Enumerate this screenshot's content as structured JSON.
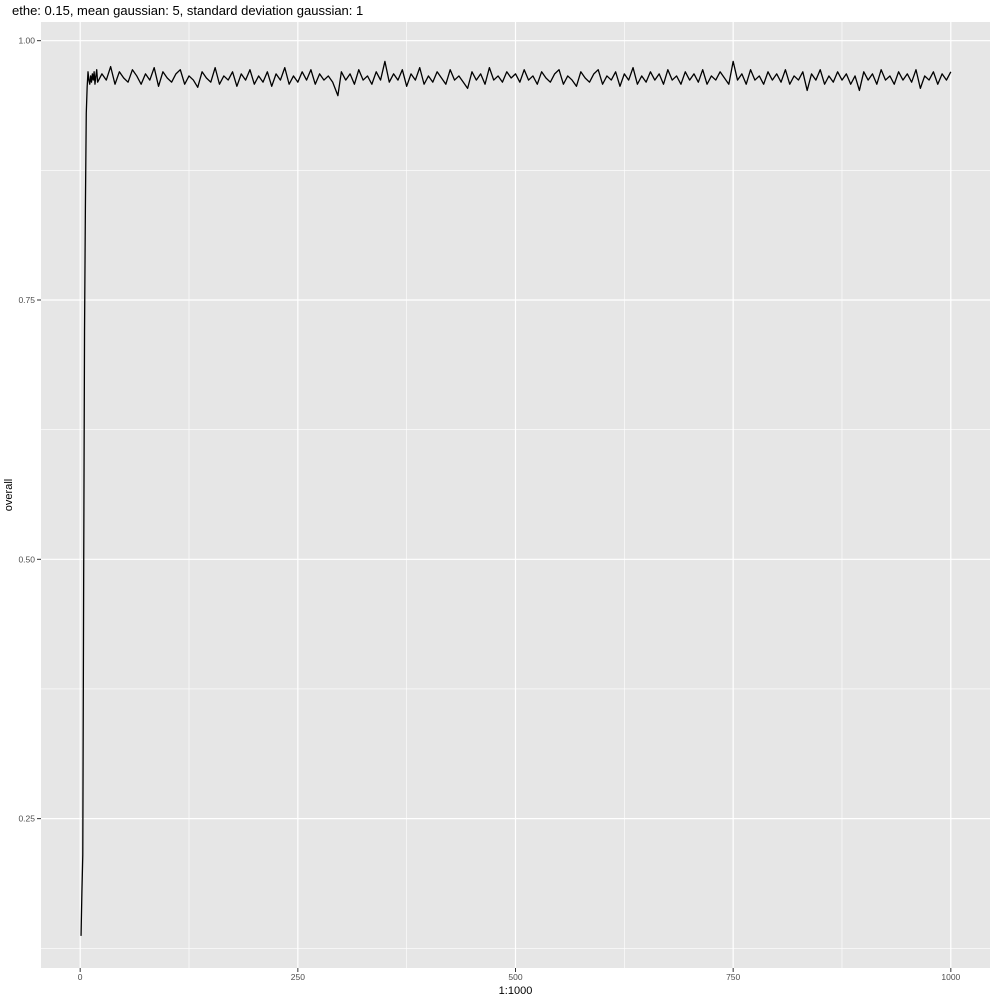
{
  "chart_data": {
    "type": "line",
    "title": "ethe: 0.15, mean gaussian: 5, standard deviation gaussian: 1",
    "xlabel": "1:1000",
    "ylabel": "overall",
    "xlim": [
      -45,
      1045
    ],
    "ylim": [
      0.106,
      1.018
    ],
    "x_ticks": [
      0,
      250,
      500,
      750,
      1000
    ],
    "x_tick_labels": [
      "0",
      "250",
      "500",
      "750",
      "1000"
    ],
    "y_ticks": [
      0.25,
      0.5,
      0.75,
      1.0
    ],
    "y_tick_labels": [
      "0.25",
      "0.50",
      "0.75",
      "1.00"
    ],
    "grid": true,
    "background": "#e6e6e6",
    "grid_color": "#ffffff",
    "line_color": "#000000",
    "series": [
      {
        "x": [
          1,
          2,
          3,
          4,
          5,
          6,
          7,
          8,
          9,
          10,
          11,
          12,
          13,
          14,
          15,
          16,
          17,
          18,
          19,
          20,
          25,
          30,
          35,
          40,
          45,
          50,
          55,
          60,
          65,
          70,
          75,
          80,
          85,
          90,
          95,
          100,
          105,
          110,
          115,
          120,
          125,
          130,
          135,
          140,
          145,
          150,
          155,
          160,
          165,
          170,
          175,
          180,
          185,
          190,
          195,
          200,
          205,
          210,
          215,
          220,
          225,
          230,
          235,
          240,
          245,
          250,
          255,
          260,
          265,
          270,
          275,
          280,
          285,
          290,
          296,
          300,
          305,
          310,
          315,
          320,
          325,
          330,
          335,
          340,
          345,
          350,
          355,
          360,
          365,
          370,
          375,
          380,
          385,
          390,
          395,
          400,
          405,
          410,
          415,
          420,
          425,
          430,
          435,
          440,
          445,
          450,
          455,
          460,
          465,
          470,
          475,
          480,
          485,
          490,
          495,
          500,
          505,
          510,
          515,
          520,
          525,
          530,
          535,
          540,
          545,
          550,
          555,
          560,
          565,
          570,
          575,
          580,
          585,
          590,
          595,
          600,
          605,
          610,
          615,
          620,
          625,
          630,
          635,
          640,
          645,
          650,
          655,
          660,
          665,
          670,
          675,
          680,
          685,
          690,
          695,
          700,
          705,
          710,
          715,
          720,
          725,
          730,
          735,
          740,
          745,
          750,
          755,
          760,
          765,
          770,
          775,
          780,
          785,
          790,
          795,
          800,
          805,
          810,
          815,
          820,
          825,
          830,
          835,
          840,
          845,
          850,
          855,
          860,
          865,
          870,
          875,
          880,
          885,
          890,
          895,
          900,
          905,
          910,
          915,
          920,
          925,
          930,
          935,
          940,
          945,
          950,
          955,
          960,
          965,
          970,
          975,
          980,
          985,
          990,
          995,
          1000
        ],
        "values": [
          0.137,
          0.18,
          0.215,
          0.48,
          0.72,
          0.84,
          0.93,
          0.955,
          0.97,
          0.962,
          0.958,
          0.966,
          0.96,
          0.968,
          0.962,
          0.97,
          0.958,
          0.966,
          0.972,
          0.96,
          0.968,
          0.962,
          0.975,
          0.958,
          0.97,
          0.964,
          0.96,
          0.972,
          0.966,
          0.958,
          0.968,
          0.962,
          0.974,
          0.956,
          0.97,
          0.964,
          0.96,
          0.968,
          0.972,
          0.958,
          0.966,
          0.962,
          0.955,
          0.97,
          0.964,
          0.96,
          0.974,
          0.958,
          0.966,
          0.962,
          0.97,
          0.956,
          0.968,
          0.962,
          0.972,
          0.958,
          0.966,
          0.96,
          0.97,
          0.956,
          0.968,
          0.962,
          0.974,
          0.958,
          0.966,
          0.96,
          0.97,
          0.962,
          0.972,
          0.958,
          0.968,
          0.962,
          0.966,
          0.96,
          0.947,
          0.97,
          0.962,
          0.968,
          0.958,
          0.972,
          0.962,
          0.966,
          0.958,
          0.97,
          0.962,
          0.98,
          0.96,
          0.968,
          0.962,
          0.972,
          0.956,
          0.968,
          0.962,
          0.974,
          0.958,
          0.966,
          0.96,
          0.97,
          0.964,
          0.958,
          0.972,
          0.962,
          0.966,
          0.96,
          0.954,
          0.97,
          0.962,
          0.968,
          0.958,
          0.974,
          0.962,
          0.966,
          0.96,
          0.97,
          0.964,
          0.968,
          0.96,
          0.972,
          0.962,
          0.966,
          0.958,
          0.97,
          0.964,
          0.96,
          0.968,
          0.972,
          0.958,
          0.966,
          0.962,
          0.956,
          0.97,
          0.964,
          0.96,
          0.968,
          0.972,
          0.958,
          0.966,
          0.962,
          0.97,
          0.956,
          0.968,
          0.962,
          0.974,
          0.958,
          0.966,
          0.96,
          0.97,
          0.962,
          0.968,
          0.958,
          0.972,
          0.962,
          0.966,
          0.958,
          0.97,
          0.962,
          0.968,
          0.96,
          0.972,
          0.958,
          0.966,
          0.962,
          0.97,
          0.964,
          0.958,
          0.98,
          0.962,
          0.968,
          0.958,
          0.972,
          0.962,
          0.966,
          0.958,
          0.97,
          0.962,
          0.968,
          0.96,
          0.972,
          0.958,
          0.966,
          0.962,
          0.97,
          0.952,
          0.968,
          0.962,
          0.972,
          0.958,
          0.966,
          0.96,
          0.97,
          0.962,
          0.968,
          0.958,
          0.966,
          0.952,
          0.97,
          0.962,
          0.968,
          0.958,
          0.972,
          0.962,
          0.966,
          0.958,
          0.97,
          0.962,
          0.968,
          0.96,
          0.972,
          0.954,
          0.966,
          0.962,
          0.97,
          0.958,
          0.968,
          0.962,
          0.97
        ]
      }
    ]
  }
}
